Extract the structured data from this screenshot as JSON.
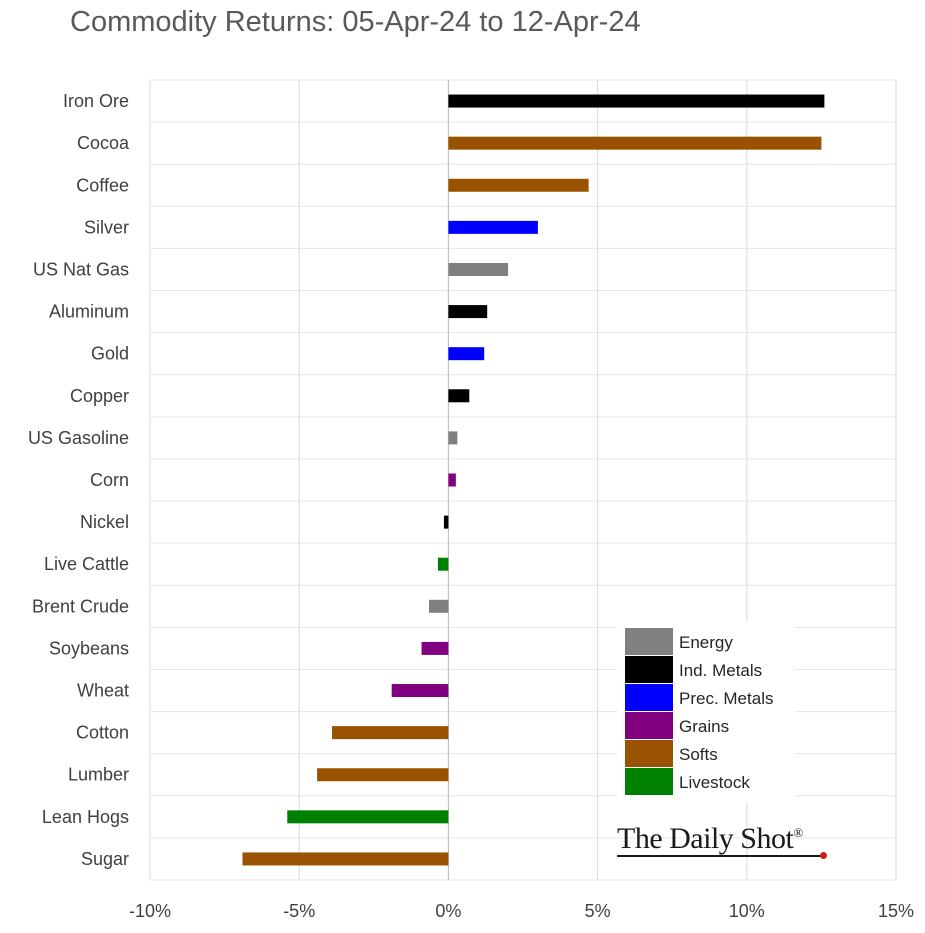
{
  "chart_data": {
    "type": "bar",
    "orientation": "horizontal",
    "title": "Commodity Returns: 05-Apr-24 to 12-Apr-24",
    "categories": [
      "Iron Ore",
      "Cocoa",
      "Coffee",
      "Silver",
      "US Nat Gas",
      "Aluminum",
      "Gold",
      "Copper",
      "US Gasoline",
      "Corn",
      "Nickel",
      "Live Cattle",
      "Brent Crude",
      "Soybeans",
      "Wheat",
      "Cotton",
      "Lumber",
      "Lean Hogs",
      "Sugar"
    ],
    "values": [
      12.6,
      12.5,
      4.7,
      3.0,
      2.0,
      1.3,
      1.2,
      0.7,
      0.3,
      0.25,
      -0.15,
      -0.35,
      -0.65,
      -0.9,
      -1.9,
      -3.9,
      -4.4,
      -5.4,
      -6.9
    ],
    "groups": [
      "Ind. Metals",
      "Softs",
      "Softs",
      "Prec. Metals",
      "Energy",
      "Ind. Metals",
      "Prec. Metals",
      "Ind. Metals",
      "Energy",
      "Grains",
      "Ind. Metals",
      "Livestock",
      "Energy",
      "Grains",
      "Grains",
      "Softs",
      "Softs",
      "Livestock",
      "Softs"
    ],
    "xlim": [
      -10,
      15
    ],
    "xticks": [
      -10,
      -5,
      0,
      5,
      10,
      15
    ],
    "xtick_labels": [
      "-10%",
      "-5%",
      "0%",
      "5%",
      "10%",
      "15%"
    ],
    "xlabel": "",
    "ylabel": "",
    "grid": "vertical",
    "legend": {
      "placement": "bottom-right",
      "items": [
        {
          "name": "Energy",
          "color": "#808080"
        },
        {
          "name": "Ind. Metals",
          "color": "#000000"
        },
        {
          "name": "Prec. Metals",
          "color": "#0000ff"
        },
        {
          "name": "Grains",
          "color": "#800080"
        },
        {
          "name": "Softs",
          "color": "#995200"
        },
        {
          "name": "Livestock",
          "color": "#008000"
        }
      ]
    }
  },
  "logo": {
    "text": "The Daily Shot",
    "mark": "®"
  }
}
